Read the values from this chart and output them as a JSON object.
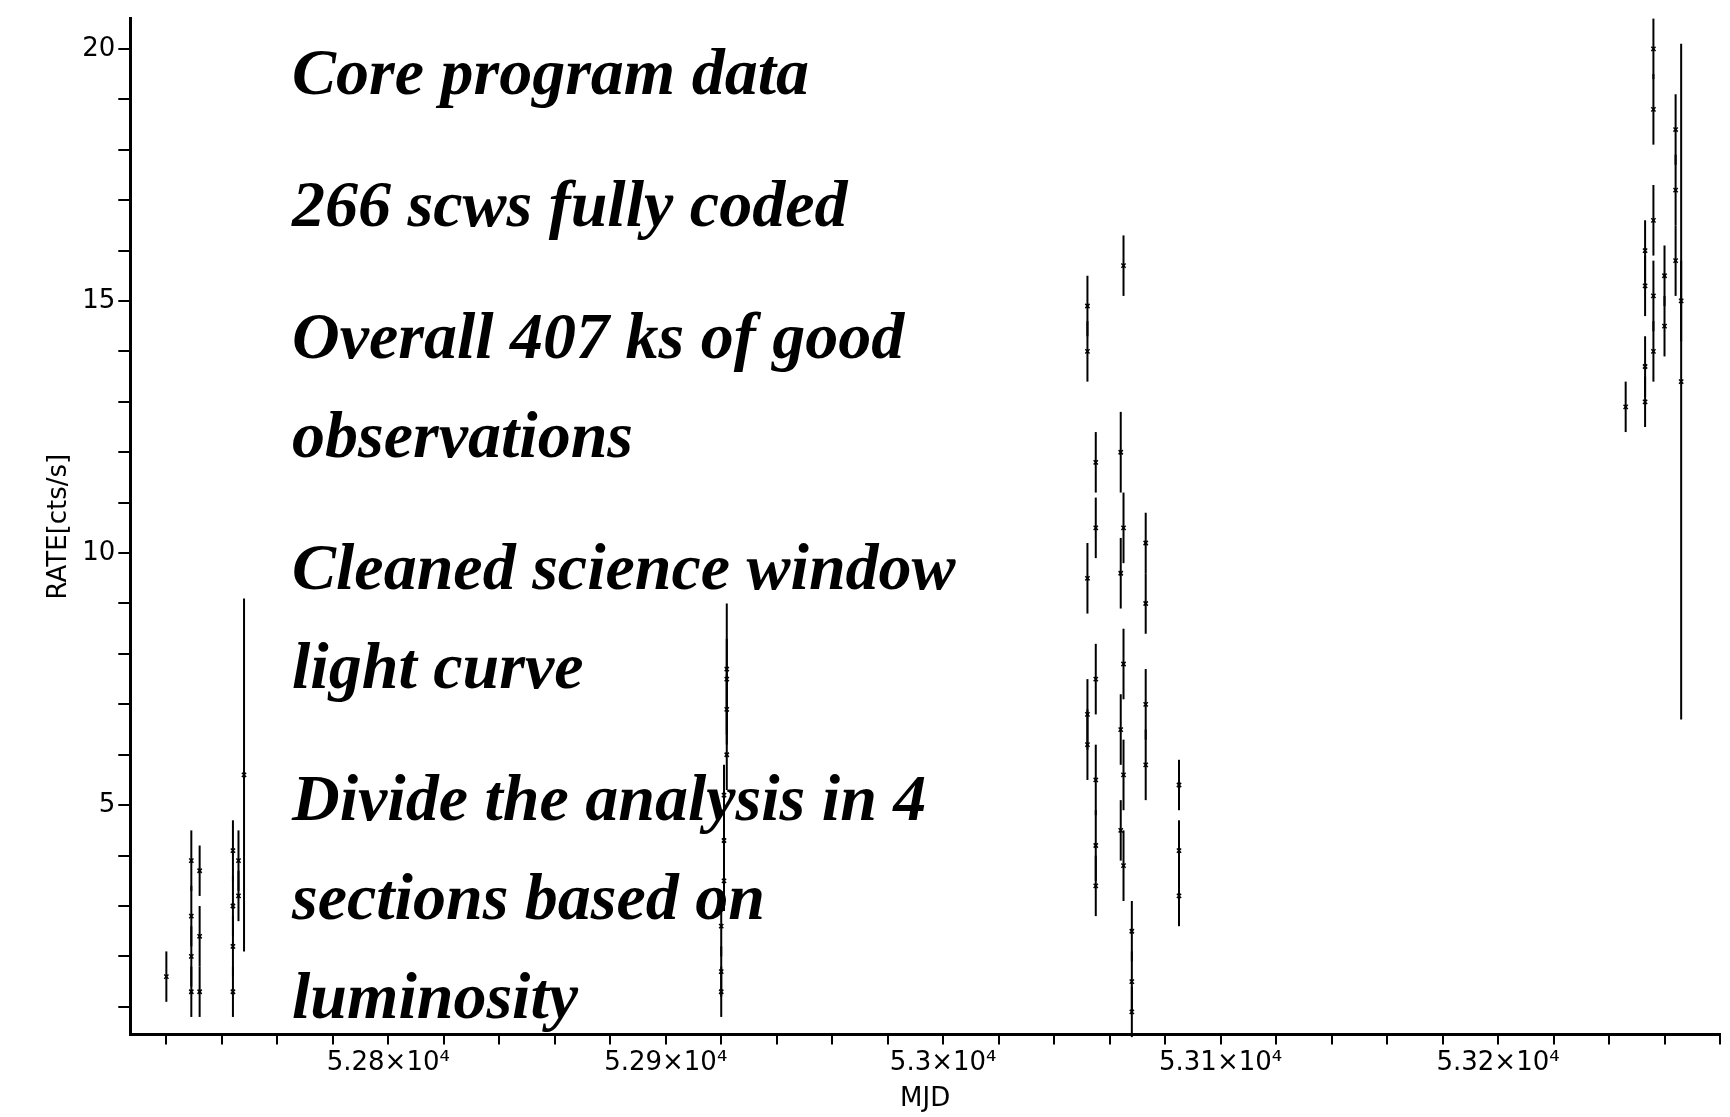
{
  "chart_data": {
    "type": "scatter",
    "xlabel": "MJD",
    "ylabel": "RATE[cts/s]",
    "annotations": [
      "Core program data",
      "266 scws fully coded",
      "Overall 407 ks of good observations",
      "Cleaned science window light curve",
      "Divide the analysis in 4 sections based on luminosity"
    ],
    "xlim": [
      52707,
      53280
    ],
    "ylim": [
      0.45,
      20.6
    ],
    "xticks": [
      {
        "value": 52720,
        "label": null
      },
      {
        "value": 52740,
        "label": null
      },
      {
        "value": 52760,
        "label": null
      },
      {
        "value": 52780,
        "label": null
      },
      {
        "value": 52800,
        "label": "5.28×10⁴"
      },
      {
        "value": 52820,
        "label": null
      },
      {
        "value": 52840,
        "label": null
      },
      {
        "value": 52860,
        "label": null
      },
      {
        "value": 52880,
        "label": null
      },
      {
        "value": 52900,
        "label": "5.29×10⁴"
      },
      {
        "value": 52920,
        "label": null
      },
      {
        "value": 52940,
        "label": null
      },
      {
        "value": 52960,
        "label": null
      },
      {
        "value": 52980,
        "label": null
      },
      {
        "value": 53000,
        "label": "5.3×10⁴"
      },
      {
        "value": 53020,
        "label": null
      },
      {
        "value": 53040,
        "label": null
      },
      {
        "value": 53060,
        "label": null
      },
      {
        "value": 53080,
        "label": null
      },
      {
        "value": 53100,
        "label": "5.31×10⁴"
      },
      {
        "value": 53120,
        "label": null
      },
      {
        "value": 53140,
        "label": null
      },
      {
        "value": 53160,
        "label": null
      },
      {
        "value": 53180,
        "label": null
      },
      {
        "value": 53200,
        "label": "5.32×10⁴"
      },
      {
        "value": 53220,
        "label": null
      },
      {
        "value": 53240,
        "label": null
      },
      {
        "value": 53260,
        "label": null
      },
      {
        "value": 53280,
        "label": null
      }
    ],
    "yticks": [
      {
        "value": 1,
        "label": null
      },
      {
        "value": 2,
        "label": null
      },
      {
        "value": 3,
        "label": null
      },
      {
        "value": 4,
        "label": null
      },
      5,
      {
        "value": 6,
        "label": null
      },
      {
        "value": 7,
        "label": null
      },
      {
        "value": 8,
        "label": null
      },
      {
        "value": 9,
        "label": null
      },
      10,
      {
        "value": 11,
        "label": null
      },
      {
        "value": 12,
        "label": null
      },
      {
        "value": 13,
        "label": null
      },
      {
        "value": 14,
        "label": null
      },
      15,
      {
        "value": 16,
        "label": null
      },
      {
        "value": 17,
        "label": null
      },
      {
        "value": 18,
        "label": null
      },
      {
        "value": 19,
        "label": null
      },
      20
    ],
    "marker": "cross",
    "grid": false,
    "legend": false,
    "series": [
      {
        "color": "#000000",
        "x": [
          52720,
          52729,
          52729,
          52729,
          52729,
          52732,
          52732,
          52732,
          52744,
          52744,
          52744,
          52744,
          52746,
          52746,
          52748,
          52920,
          52920,
          52920,
          52921,
          52921,
          52921,
          52922,
          52922,
          52922,
          52922,
          53052,
          53052,
          53052,
          53052,
          53052,
          53055,
          53055,
          53055,
          53055,
          53055,
          53055,
          53064,
          53064,
          53064,
          53064,
          53065,
          53065,
          53065,
          53065,
          53065,
          53068,
          53068,
          53068,
          53073,
          53073,
          53073,
          53073,
          53085,
          53085,
          53085,
          53246,
          53253,
          53253,
          53253,
          53253,
          53256,
          53256,
          53256,
          53256,
          53256,
          53260,
          53260,
          53264,
          53264,
          53264,
          53266,
          53266
        ],
        "values": [
          1.6,
          3.9,
          2.8,
          2.0,
          1.3,
          3.7,
          2.4,
          1.3,
          4.1,
          3.0,
          2.2,
          1.3,
          3.9,
          3.2,
          5.6,
          1.3,
          1.7,
          2.6,
          3.5,
          4.3,
          5.2,
          6.0,
          6.9,
          7.5,
          7.7,
          14.9,
          14.0,
          9.5,
          6.8,
          6.2,
          11.8,
          10.5,
          7.5,
          5.5,
          4.2,
          3.4,
          12.0,
          9.6,
          6.5,
          4.5,
          15.7,
          10.5,
          7.8,
          5.6,
          3.8,
          2.5,
          1.5,
          0.9,
          10.2,
          9.0,
          7.0,
          5.8,
          5.4,
          4.1,
          3.2,
          12.9,
          16.0,
          15.3,
          13.7,
          13.0,
          20.0,
          18.8,
          16.6,
          15.1,
          14.0,
          15.5,
          14.5,
          18.4,
          17.2,
          15.8,
          15.0,
          13.4
        ],
        "errors": [
          0.5,
          0.6,
          0.6,
          0.6,
          0.5,
          0.5,
          0.6,
          0.5,
          0.6,
          0.6,
          0.6,
          0.5,
          0.6,
          0.5,
          3.5,
          0.5,
          0.5,
          0.6,
          0.6,
          0.6,
          0.6,
          0.7,
          0.7,
          0.8,
          1.3,
          0.6,
          0.6,
          0.7,
          0.7,
          0.7,
          0.6,
          0.6,
          0.7,
          0.7,
          0.7,
          0.6,
          0.8,
          0.7,
          0.7,
          0.6,
          0.6,
          0.7,
          0.7,
          0.7,
          0.7,
          0.6,
          0.6,
          0.5,
          0.6,
          0.6,
          0.7,
          0.7,
          0.5,
          0.6,
          0.6,
          0.5,
          0.6,
          0.6,
          0.6,
          0.5,
          0.6,
          0.7,
          0.7,
          0.7,
          0.6,
          0.6,
          0.6,
          0.7,
          0.7,
          0.7,
          0.8,
          6.7
        ]
      }
    ]
  }
}
